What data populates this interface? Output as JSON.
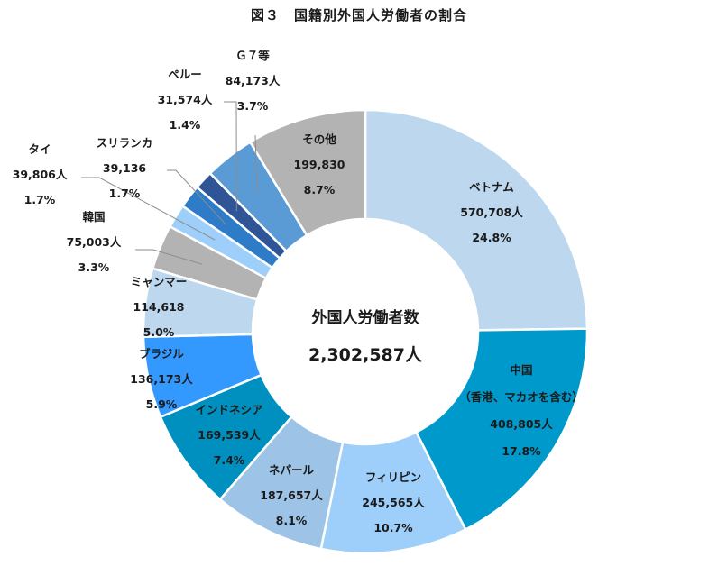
{
  "chart_title": "図３　国籍別外国人労働者の割合",
  "center": {
    "label": "外国人労働者数",
    "total": "2,302,587人"
  },
  "chart_data": {
    "type": "pie",
    "variant": "donut",
    "title": "図３　国籍別外国人労働者の割合",
    "center_label": "外国人労働者数",
    "total": 2302587,
    "unit": "人",
    "start_angle_deg": 0,
    "direction": "clockwise",
    "slices": [
      {
        "name": "ベトナム",
        "value": 570708,
        "value_label": "570,708人",
        "percent": 24.8,
        "percent_label": "24.8%",
        "color": "#bdd7ee"
      },
      {
        "name": "中国",
        "sub": "（香港、マカオを含む）",
        "value": 408805,
        "value_label": "408,805人",
        "percent": 17.8,
        "percent_label": "17.8%",
        "color": "#0099cc"
      },
      {
        "name": "フィリピン",
        "value": 245565,
        "value_label": "245,565人",
        "percent": 10.7,
        "percent_label": "10.7%",
        "color": "#9dcffa"
      },
      {
        "name": "ネパール",
        "value": 187657,
        "value_label": "187,657人",
        "percent": 8.1,
        "percent_label": "8.1%",
        "color": "#9dc3e6"
      },
      {
        "name": "インドネシア",
        "value": 169539,
        "value_label": "169,539人",
        "percent": 7.4,
        "percent_label": "7.4%",
        "color": "#0090c0"
      },
      {
        "name": "ブラジル",
        "value": 136173,
        "value_label": "136,173人",
        "percent": 5.9,
        "percent_label": "5.9%",
        "color": "#3399ff"
      },
      {
        "name": "ミャンマー",
        "value": 114618,
        "value_label": "114,618",
        "percent": 5.0,
        "percent_label": "5.0%",
        "color": "#bdd7ee"
      },
      {
        "name": "韓国",
        "value": 75003,
        "value_label": "75,003人",
        "percent": 3.3,
        "percent_label": "3.3%",
        "color": "#b3b3b3"
      },
      {
        "name": "タイ",
        "value": 39806,
        "value_label": "39,806人",
        "percent": 1.7,
        "percent_label": "1.7%",
        "color": "#9dcffa"
      },
      {
        "name": "スリランカ",
        "value": 39136,
        "value_label": "39,136",
        "percent": 1.7,
        "percent_label": "1.7%",
        "color": "#2e7cc7"
      },
      {
        "name": "ペルー",
        "value": 31574,
        "value_label": "31,574人",
        "percent": 1.4,
        "percent_label": "1.4%",
        "color": "#2f5597"
      },
      {
        "name": "Ｇ７等",
        "value": 84173,
        "value_label": "84,173人",
        "percent": 3.7,
        "percent_label": "3.7%",
        "color": "#5b9bd5"
      },
      {
        "name": "その他",
        "value": 199830,
        "value_label": "199,830",
        "percent": 8.7,
        "percent_label": "8.7%",
        "color": "#b3b3b3"
      }
    ],
    "legend": "none (direct labels with leader lines)"
  }
}
